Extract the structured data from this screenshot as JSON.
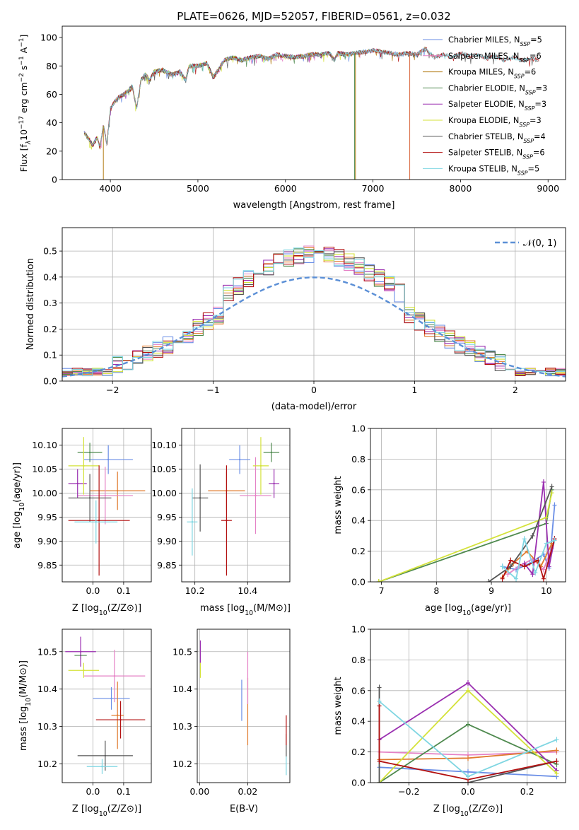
{
  "figure": {
    "title": "PLATE=0626, MJD=52057, FIBERID=0561, z=0.032"
  },
  "chart_data": [
    {
      "id": "spectrum",
      "type": "line",
      "title": "PLATE=0626, MJD=52057, FIBERID=0561, z=0.032",
      "xlabel": "wavelength [Angstrom, rest frame]",
      "ylabel": "Flux [fλ10⁻¹⁷ erg cm⁻² s⁻¹ A⁻¹]",
      "xlim": [
        3450,
        9200
      ],
      "ylim": [
        0,
        108
      ],
      "xticks": [
        4000,
        5000,
        6000,
        7000,
        8000,
        9000
      ],
      "yticks": [
        0,
        20,
        40,
        60,
        80,
        100
      ],
      "grid": false,
      "legend_position": "top-right",
      "continuum": {
        "x": [
          3700,
          3760,
          3800,
          3850,
          3880,
          3920,
          3960,
          4000,
          4050,
          4100,
          4150,
          4200,
          4250,
          4300,
          4350,
          4400,
          4450,
          4500,
          4600,
          4700,
          4800,
          4860,
          4900,
          5000,
          5100,
          5180,
          5250,
          5300,
          5400,
          5500,
          5600,
          5700,
          5800,
          5900,
          6000,
          6100,
          6200,
          6300,
          6400,
          6500,
          6560,
          6600,
          6700,
          6800,
          6900,
          7000,
          7100,
          7200,
          7300,
          7400,
          7500,
          7600,
          7700,
          7800,
          7900,
          8000,
          8100,
          8200,
          8300,
          8400,
          8500,
          8600,
          8700,
          8800,
          8900
        ],
        "y": [
          33,
          28,
          24,
          30,
          22,
          38,
          25,
          50,
          55,
          58,
          60,
          62,
          66,
          50,
          70,
          74,
          70,
          76,
          77,
          74,
          76,
          70,
          80,
          80,
          82,
          72,
          79,
          84,
          86,
          84,
          86,
          87,
          85,
          88,
          87,
          86,
          87,
          88,
          88,
          89,
          84,
          89,
          88,
          89,
          90,
          91,
          90,
          89,
          88,
          89,
          88,
          92,
          86,
          88,
          86,
          89,
          87,
          88,
          85,
          87,
          84,
          86,
          84,
          85,
          84
        ]
      },
      "series": [
        {
          "name": "Chabrier MILES, N_SSP=5",
          "color": "#6a8ee6",
          "x_end": 7600
        },
        {
          "name": "Salpeter MILES, N_SSP=6",
          "color": "#e582c6",
          "x_end": 7600
        },
        {
          "name": "Kroupa MILES, N_SSP=6",
          "color": "#b47f1a",
          "x_end": 7600
        },
        {
          "name": "Chabrier ELODIE, N_SSP=3",
          "color": "#4f8a4f",
          "x_end": 6800
        },
        {
          "name": "Salpeter ELODIE, N_SSP=3",
          "color": "#9a2fb0",
          "x_end": 6800
        },
        {
          "name": "Kroupa ELODIE, N_SSP=3",
          "color": "#d4e23a",
          "x_end": 6800
        },
        {
          "name": "Chabrier STELIB, N_SSP=4",
          "color": "#555555",
          "x_end": 8900
        },
        {
          "name": "Salpeter STELIB, N_SSP=6",
          "color": "#b31111",
          "x_end": 8900
        },
        {
          "name": "Kroupa STELIB, N_SSP=5",
          "color": "#7fd6e2",
          "x_end": 8900
        }
      ],
      "legend_labels": [
        {
          "prefix": "Chabrier MILES, N",
          "sub": "SSP",
          "suffix": "=5"
        },
        {
          "prefix": "Salpeter MILES, N",
          "sub": "SSP",
          "suffix": "=6"
        },
        {
          "prefix": "Kroupa MILES, N",
          "sub": "SSP",
          "suffix": "=6"
        },
        {
          "prefix": "Chabrier ELODIE, N",
          "sub": "SSP",
          "suffix": "=3"
        },
        {
          "prefix": "Salpeter ELODIE, N",
          "sub": "SSP",
          "suffix": "=3"
        },
        {
          "prefix": "Kroupa ELODIE, N",
          "sub": "SSP",
          "suffix": "=3"
        },
        {
          "prefix": "Chabrier STELIB, N",
          "sub": "SSP",
          "suffix": "=4"
        },
        {
          "prefix": "Salpeter STELIB, N",
          "sub": "SSP",
          "suffix": "=6"
        },
        {
          "prefix": "Kroupa STELIB, N",
          "sub": "SSP",
          "suffix": "=5"
        }
      ]
    },
    {
      "id": "residuals",
      "type": "histogram",
      "xlabel": "(data-model)/error",
      "ylabel": "Normed distribution",
      "xlim": [
        -2.5,
        2.5
      ],
      "ylim": [
        0,
        0.59
      ],
      "xticks": [
        -2,
        -1,
        0,
        1,
        2
      ],
      "yticks": [
        0.0,
        0.1,
        0.2,
        0.3,
        0.4,
        0.5
      ],
      "grid": true,
      "bin_width": 0.1,
      "legend": "𝒩(0, 1)",
      "legend_position": "top-right",
      "normal_curve": {
        "mean": 0,
        "sigma": 1,
        "color": "#5b8fd6"
      },
      "series_colors": [
        "#6a8ee6",
        "#e582c6",
        "#e07b2e",
        "#4f8a4f",
        "#9a2fb0",
        "#d4e23a",
        "#555555",
        "#b31111",
        "#7fd6e2"
      ]
    },
    {
      "id": "age_vs_Z",
      "type": "scatter",
      "xlabel": "Z [log10(Z/Z⊙)]",
      "ylabel": "age  [log10(age/yr)]",
      "xlim": [
        -0.1,
        0.19
      ],
      "ylim": [
        9.815,
        10.135
      ],
      "xticks": [
        0.0,
        0.1
      ],
      "yticks": [
        9.85,
        9.9,
        9.95,
        10.0,
        10.05,
        10.1
      ],
      "grid": true,
      "points": [
        {
          "x": 0.05,
          "y": 10.07,
          "xerr": 0.08,
          "yerr": 0.03,
          "color": "#6a8ee6"
        },
        {
          "x": 0.08,
          "y": 10.005,
          "xerr": 0.09,
          "yerr": 0.04,
          "color": "#e07b2e"
        },
        {
          "x": 0.04,
          "y": 9.995,
          "xerr": 0.09,
          "yerr": 0.06,
          "color": "#e582c6"
        },
        {
          "x": -0.01,
          "y": 10.085,
          "xerr": 0.04,
          "yerr": 0.02,
          "color": "#4f8a4f"
        },
        {
          "x": -0.05,
          "y": 10.02,
          "xerr": 0.03,
          "yerr": 0.03,
          "color": "#9a2fb0"
        },
        {
          "x": -0.03,
          "y": 10.057,
          "xerr": 0.05,
          "yerr": 0.06,
          "color": "#d4e23a"
        },
        {
          "x": -0.01,
          "y": 9.99,
          "xerr": 0.07,
          "yerr": 0.05,
          "color": "#555555"
        },
        {
          "x": 0.02,
          "y": 9.943,
          "xerr": 0.1,
          "yerr": 0.115,
          "color": "#b31111"
        },
        {
          "x": 0.01,
          "y": 9.94,
          "xerr": 0.07,
          "yerr": 0.045,
          "color": "#7fd6e2"
        }
      ]
    },
    {
      "id": "age_vs_mass",
      "type": "scatter",
      "xlabel": "mass [log10(M/M⊙)]",
      "ylabel": "",
      "xlim": [
        10.15,
        10.56
      ],
      "ylim": [
        9.815,
        10.135
      ],
      "xticks": [
        10.2,
        10.4
      ],
      "yticks": [
        9.85,
        9.9,
        9.95,
        10.0,
        10.05,
        10.1
      ],
      "grid": true,
      "points": [
        {
          "x": 10.37,
          "y": 10.07,
          "xerr": 0.04,
          "yerr": 0.03,
          "color": "#6a8ee6"
        },
        {
          "x": 10.32,
          "y": 10.005,
          "xerr": 0.07,
          "yerr": 0.04,
          "color": "#e07b2e"
        },
        {
          "x": 10.43,
          "y": 9.995,
          "xerr": 0.06,
          "yerr": 0.08,
          "color": "#e582c6"
        },
        {
          "x": 10.49,
          "y": 10.085,
          "xerr": 0.03,
          "yerr": 0.02,
          "color": "#4f8a4f"
        },
        {
          "x": 10.5,
          "y": 10.02,
          "xerr": 0.02,
          "yerr": 0.03,
          "color": "#9a2fb0"
        },
        {
          "x": 10.45,
          "y": 10.057,
          "xerr": 0.03,
          "yerr": 0.06,
          "color": "#d4e23a"
        },
        {
          "x": 10.22,
          "y": 9.99,
          "xerr": 0.03,
          "yerr": 0.07,
          "color": "#555555"
        },
        {
          "x": 10.32,
          "y": 9.943,
          "xerr": 0.02,
          "yerr": 0.115,
          "color": "#b31111"
        },
        {
          "x": 10.19,
          "y": 9.94,
          "xerr": 0.02,
          "yerr": 0.07,
          "color": "#7fd6e2"
        }
      ]
    },
    {
      "id": "weight_vs_age",
      "type": "line",
      "xlabel": "age  [log10(age/yr)]",
      "ylabel": "mass weight",
      "xlim": [
        6.8,
        10.35
      ],
      "ylim": [
        0,
        1.0
      ],
      "xticks": [
        7,
        8,
        9,
        10
      ],
      "yticks": [
        0.0,
        0.2,
        0.4,
        0.6,
        0.8,
        1.0
      ],
      "grid": true,
      "series": [
        {
          "color": "#6a8ee6",
          "x": [
            9.2,
            9.45,
            9.7,
            9.95,
            10.05,
            10.15
          ],
          "y": [
            0.1,
            0.08,
            0.12,
            0.18,
            0.09,
            0.5
          ]
        },
        {
          "color": "#e582c6",
          "x": [
            9.3,
            9.5,
            9.75,
            9.95,
            10.1
          ],
          "y": [
            0.05,
            0.1,
            0.15,
            0.08,
            0.22
          ]
        },
        {
          "color": "#e07b2e",
          "x": [
            9.2,
            9.4,
            9.65,
            9.9,
            10.1
          ],
          "y": [
            0.03,
            0.12,
            0.2,
            0.1,
            0.25
          ]
        },
        {
          "color": "#4f8a4f",
          "x": [
            6.95,
            10.0,
            10.1
          ],
          "y": [
            0.0,
            0.38,
            0.6
          ]
        },
        {
          "color": "#9a2fb0",
          "x": [
            9.6,
            9.75,
            9.95,
            10.05,
            10.15
          ],
          "y": [
            0.12,
            0.05,
            0.65,
            0.1,
            0.28
          ]
        },
        {
          "color": "#d4e23a",
          "x": [
            6.95,
            10.0,
            10.1
          ],
          "y": [
            0.0,
            0.42,
            0.58
          ]
        },
        {
          "color": "#555555",
          "x": [
            8.95,
            9.35,
            9.75,
            10.1
          ],
          "y": [
            0.0,
            0.1,
            0.3,
            0.62
          ]
        },
        {
          "color": "#b31111",
          "x": [
            9.2,
            9.35,
            9.6,
            9.85,
            9.95,
            10.15
          ],
          "y": [
            0.02,
            0.14,
            0.1,
            0.14,
            0.02,
            0.28
          ]
        },
        {
          "color": "#7fd6e2",
          "x": [
            9.2,
            9.45,
            9.6,
            9.8,
            10.0,
            10.15
          ],
          "y": [
            0.1,
            0.02,
            0.28,
            0.06,
            0.25,
            0.27
          ]
        }
      ]
    },
    {
      "id": "mass_vs_Z",
      "type": "scatter",
      "xlabel": "Z [log10(Z/Z⊙)]",
      "ylabel": "mass [log10(M/M⊙)]",
      "xlim": [
        -0.1,
        0.19
      ],
      "ylim": [
        10.15,
        10.56
      ],
      "xticks": [
        0.0,
        0.1
      ],
      "yticks": [
        10.2,
        10.3,
        10.4,
        10.5
      ],
      "grid": true,
      "points": [
        {
          "x": 0.06,
          "y": 10.375,
          "xerr": 0.06,
          "yerr": 0.03,
          "color": "#6a8ee6"
        },
        {
          "x": 0.08,
          "y": 10.33,
          "xerr": 0.02,
          "yerr": 0.09,
          "color": "#e07b2e"
        },
        {
          "x": 0.07,
          "y": 10.435,
          "xerr": 0.1,
          "yerr": 0.07,
          "color": "#e582c6"
        },
        {
          "x": -0.04,
          "y": 10.49,
          "xerr": 0.02,
          "yerr": 0.01,
          "color": "#4f8a4f"
        },
        {
          "x": -0.04,
          "y": 10.5,
          "xerr": 0.05,
          "yerr": 0.04,
          "color": "#9a2fb0"
        },
        {
          "x": -0.03,
          "y": 10.45,
          "xerr": 0.05,
          "yerr": 0.02,
          "color": "#d4e23a"
        },
        {
          "x": 0.04,
          "y": 10.222,
          "xerr": 0.09,
          "yerr": 0.04,
          "color": "#555555"
        },
        {
          "x": 0.09,
          "y": 10.318,
          "xerr": 0.08,
          "yerr": 0.05,
          "color": "#b31111"
        },
        {
          "x": 0.03,
          "y": 10.193,
          "xerr": 0.05,
          "yerr": 0.02,
          "color": "#7fd6e2"
        }
      ]
    },
    {
      "id": "mass_vs_EBV",
      "type": "scatter",
      "xlabel": "E(B-V)",
      "ylabel": "",
      "xlim": [
        -0.001,
        0.0375
      ],
      "ylim": [
        10.15,
        10.56
      ],
      "xticks": [
        0.0,
        0.02
      ],
      "yticks": [
        10.2,
        10.3,
        10.4,
        10.5
      ],
      "grid": true,
      "points": [
        {
          "x": 0.0175,
          "y": 10.37,
          "xerr": 0,
          "yerr": 0.055,
          "color": "#6a8ee6"
        },
        {
          "x": 0.02,
          "y": 10.34,
          "xerr": 0,
          "yerr": 0.09,
          "color": "#e07b2e"
        },
        {
          "x": 0.02,
          "y": 10.43,
          "xerr": 0,
          "yerr": 0.07,
          "color": "#e582c6"
        },
        {
          "x": 0.0003,
          "y": 10.5,
          "xerr": 0,
          "yerr": 0.03,
          "color": "#9a2fb0"
        },
        {
          "x": 0.0003,
          "y": 10.45,
          "xerr": 0,
          "yerr": 0.02,
          "color": "#d4e23a"
        },
        {
          "x": 0.036,
          "y": 10.25,
          "xerr": 0,
          "yerr": 0.03,
          "color": "#555555"
        },
        {
          "x": 0.036,
          "y": 10.29,
          "xerr": 0,
          "yerr": 0.04,
          "color": "#b31111"
        },
        {
          "x": 0.036,
          "y": 10.195,
          "xerr": 0,
          "yerr": 0.025,
          "color": "#7fd6e2"
        }
      ]
    },
    {
      "id": "weight_vs_Z",
      "type": "line",
      "xlabel": "Z [log10(Z/Z⊙)]",
      "ylabel": "mass weight",
      "xlim": [
        -0.33,
        0.33
      ],
      "ylim": [
        0,
        1.0
      ],
      "xticks": [
        -0.2,
        0.0,
        0.2
      ],
      "yticks": [
        0.0,
        0.2,
        0.4,
        0.6,
        0.8,
        1.0
      ],
      "grid": true,
      "series": [
        {
          "color": "#6a8ee6",
          "x": [
            -0.3,
            0.0,
            0.3
          ],
          "y": [
            0.1,
            0.07,
            0.04
          ]
        },
        {
          "color": "#e582c6",
          "x": [
            -0.3,
            0.0,
            0.3
          ],
          "y": [
            0.2,
            0.18,
            0.2
          ]
        },
        {
          "color": "#e07b2e",
          "x": [
            -0.3,
            0.0,
            0.3
          ],
          "y": [
            0.15,
            0.16,
            0.21
          ]
        },
        {
          "color": "#4f8a4f",
          "x": [
            -0.3,
            0.0,
            0.3
          ],
          "y": [
            0.0,
            0.38,
            0.12
          ]
        },
        {
          "color": "#9a2fb0",
          "x": [
            -0.3,
            0.0,
            0.3
          ],
          "y": [
            0.28,
            0.65,
            0.08
          ]
        },
        {
          "color": "#d4e23a",
          "x": [
            -0.3,
            0.0,
            0.3
          ],
          "y": [
            0.0,
            0.6,
            0.06
          ]
        },
        {
          "color": "#555555",
          "x": [
            -0.3,
            -0.3,
            0.0,
            0.3
          ],
          "y": [
            0.62,
            0.0,
            0.0,
            0.14
          ]
        },
        {
          "color": "#b31111",
          "x": [
            -0.3,
            -0.3,
            0.0,
            0.3
          ],
          "y": [
            0.5,
            0.14,
            0.02,
            0.14
          ]
        },
        {
          "color": "#7fd6e2",
          "x": [
            -0.3,
            0.0,
            0.3
          ],
          "y": [
            0.53,
            0.04,
            0.28
          ]
        }
      ]
    }
  ]
}
